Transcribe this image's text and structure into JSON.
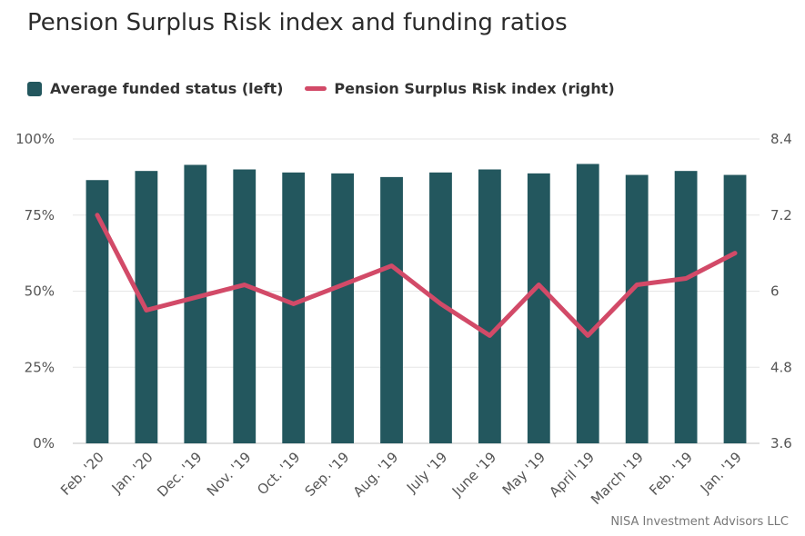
{
  "chart_data": {
    "type": "bar",
    "title": "Pension Surplus Risk index and funding ratios",
    "categories": [
      "Feb. '20",
      "Jan. '20",
      "Dec. '19",
      "Nov. '19",
      "Oct. '19",
      "Sep. '19",
      "Aug. '19",
      "July '19",
      "June '19",
      "May '19",
      "April '19",
      "March '19",
      "Feb. '19",
      "Jan. '19"
    ],
    "series": [
      {
        "name": "Average funded status (left)",
        "type": "bar",
        "axis": "left",
        "color": "#23575e",
        "values": [
          86.5,
          89.5,
          91.5,
          90,
          89,
          88.7,
          87.5,
          89,
          90,
          88.7,
          91.8,
          88.2,
          89.5,
          88.2
        ]
      },
      {
        "name": "Pension Surplus Risk index (right)",
        "type": "line",
        "axis": "right",
        "color": "#d24a68",
        "values": [
          7.2,
          5.7,
          5.9,
          6.1,
          5.8,
          6.1,
          6.4,
          5.8,
          5.3,
          6.1,
          5.3,
          6.1,
          6.2,
          6.6
        ]
      }
    ],
    "y_left": {
      "ylim": [
        0,
        100
      ],
      "ticks": [
        "0%",
        "25%",
        "50%",
        "75%",
        "100%"
      ]
    },
    "y_right": {
      "ylim": [
        3.6,
        8.4
      ],
      "ticks": [
        "3.6",
        "4.8",
        "6",
        "7.2",
        "8.4"
      ]
    },
    "grid": true,
    "legend": "top-left"
  },
  "credit": "NISA Investment Advisors LLC"
}
